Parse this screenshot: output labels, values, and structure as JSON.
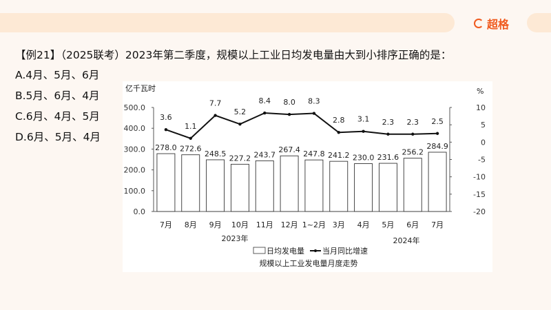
{
  "header": {
    "brand": "超格",
    "brand_icon": "brand-logo-icon",
    "accent": "#f05a1e"
  },
  "question": {
    "text": "【例21】（2025联考）2023年第二季度，规模以上工业日均发电量由大到小排序正确的是：",
    "options": [
      "A.4月、5月、6月",
      "B.5月、6月、4月",
      "C.6月、4月、5月",
      "D.6月、5月、4月"
    ]
  },
  "chart_data": {
    "type": "bar+line",
    "title": "规模以上工业发电量月度走势",
    "ylabel_left": "亿千瓦时",
    "ylabel_right": "%",
    "categories": [
      "7月",
      "8月",
      "9月",
      "10月",
      "11月",
      "12月",
      "1~2月",
      "3月",
      "4月",
      "5月",
      "6月",
      "7月"
    ],
    "year_labels": [
      "2023年",
      "2024年"
    ],
    "ylim_left": [
      0,
      500
    ],
    "yticks_left": [
      "0.0",
      "100.0",
      "200.0",
      "300.0",
      "400.0",
      "500.0"
    ],
    "ylim_right": [
      -20,
      10
    ],
    "yticks_right": [
      "-20",
      "-15",
      "-10",
      "-5",
      "0",
      "5",
      "10"
    ],
    "legend_position": "bottom",
    "series": [
      {
        "name": "日均发电量",
        "kind": "bar",
        "values": [
          278.0,
          272.6,
          248.5,
          227.2,
          243.7,
          267.4,
          247.8,
          241.2,
          230.0,
          231.6,
          256.2,
          284.9
        ],
        "labels": [
          "278.0",
          "272.6",
          "248.5",
          "227.2",
          "243.7",
          "267.4",
          "247.8",
          "241.2",
          "230.0",
          "231.6",
          "256.2",
          "284.9"
        ]
      },
      {
        "name": "当月同比增速",
        "kind": "line",
        "values": [
          3.6,
          1.1,
          7.7,
          5.2,
          8.4,
          8.0,
          8.3,
          2.8,
          3.1,
          2.3,
          2.3,
          2.5
        ],
        "labels": [
          "3.6",
          "1.1",
          "7.7",
          "5.2",
          "8.4",
          "8.0",
          "8.3",
          "2.8",
          "3.1",
          "2.3",
          "2.3",
          "2.5"
        ]
      }
    ]
  }
}
